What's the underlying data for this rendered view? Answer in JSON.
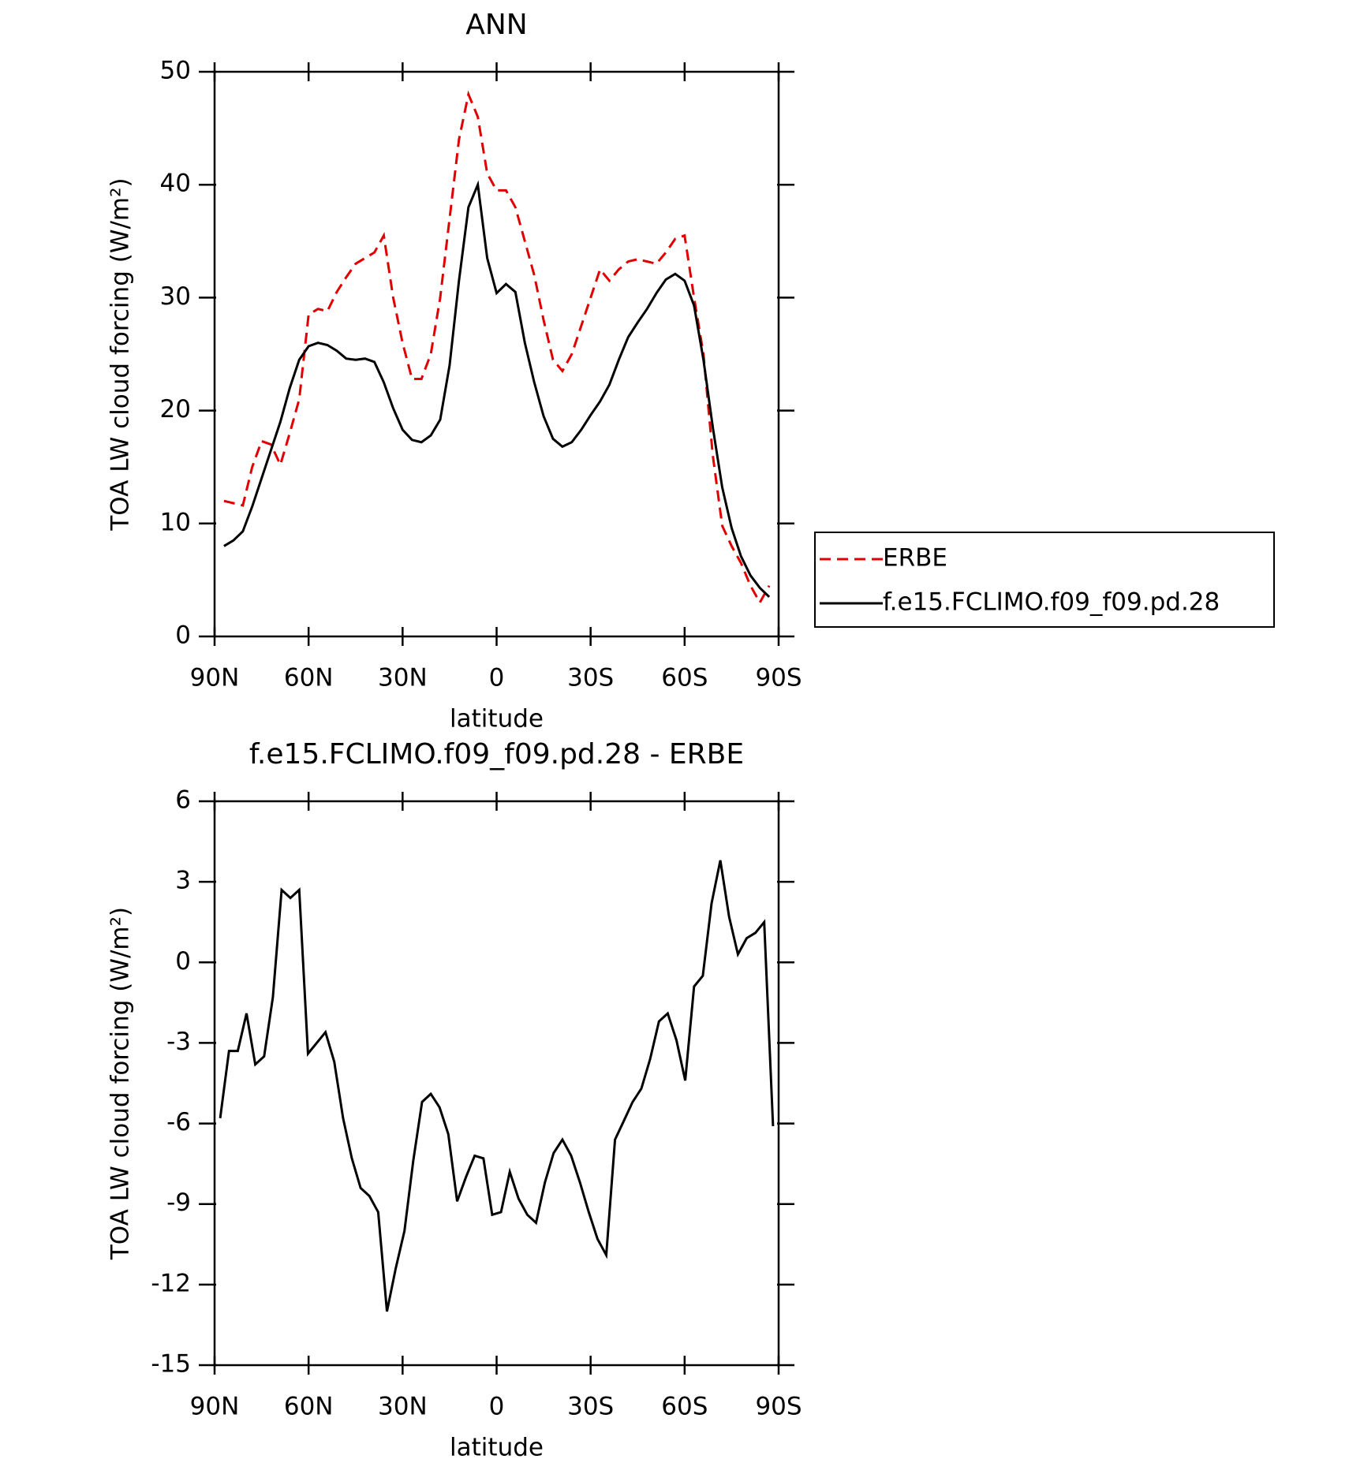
{
  "chart_data": [
    {
      "type": "line",
      "title": "ANN",
      "xlabel": "latitude",
      "ylabel": "TOA LW cloud forcing (W/m²)",
      "x": [
        87,
        84,
        81,
        78,
        75,
        72,
        69,
        66,
        63,
        60,
        57,
        54,
        51,
        48,
        45,
        42,
        39,
        36,
        33,
        30,
        27,
        24,
        21,
        18,
        15,
        12,
        9,
        6,
        3,
        0,
        -3,
        -6,
        -9,
        -12,
        -15,
        -18,
        -21,
        -24,
        -27,
        -30,
        -33,
        -36,
        -39,
        -42,
        -45,
        -48,
        -51,
        -54,
        -57,
        -60,
        -63,
        -66,
        -69,
        -72,
        -75,
        -78,
        -81,
        -84,
        -87
      ],
      "series": [
        {
          "name": "ERBE",
          "color": "#e00000",
          "style": "dashed",
          "values": [
            12,
            11.8,
            11.6,
            15,
            17.3,
            17,
            15.2,
            18,
            21,
            28.5,
            29,
            28.8,
            30.5,
            31.8,
            33,
            33.5,
            34,
            35.5,
            30,
            26,
            22.8,
            22.8,
            25,
            30,
            37,
            44,
            48,
            46,
            41,
            39.5,
            39.5,
            38,
            35,
            32,
            28,
            24.5,
            23.5,
            25,
            27.5,
            30,
            32.5,
            31.5,
            32.5,
            33.2,
            33.4,
            33.2,
            33,
            34,
            35.2,
            35.5,
            30,
            25,
            16,
            9.8,
            8,
            6.5,
            4.5,
            3,
            4.5
          ]
        },
        {
          "name": "f.e15.FCLIMO.f09_f09.pd.28",
          "color": "#000000",
          "style": "solid",
          "values": [
            8.0,
            8.5,
            9.3,
            11.5,
            14,
            16.5,
            19,
            22,
            24.5,
            25.7,
            26,
            25.8,
            25.3,
            24.6,
            24.5,
            24.6,
            24.3,
            22.5,
            20.2,
            18.3,
            17.4,
            17.2,
            17.8,
            19.2,
            24,
            31.5,
            38,
            40,
            33.5,
            30.4,
            31.2,
            30.5,
            26,
            22.5,
            19.5,
            17.5,
            16.8,
            17.2,
            18.3,
            19.6,
            20.8,
            22.3,
            24.5,
            26.5,
            27.8,
            29,
            30.4,
            31.6,
            32.1,
            31.5,
            29.3,
            24.5,
            18.5,
            13.2,
            9.6,
            7.1,
            5.4,
            4.3,
            3.5
          ]
        }
      ],
      "xlim": [
        90,
        -90
      ],
      "xticks": [
        {
          "value": 90,
          "label": "90N"
        },
        {
          "value": 60,
          "label": "60N"
        },
        {
          "value": 30,
          "label": "30N"
        },
        0,
        {
          "value": -30,
          "label": "30S"
        },
        {
          "value": -60,
          "label": "60S"
        },
        {
          "value": -90,
          "label": "90S"
        }
      ],
      "ylim": [
        0,
        50
      ],
      "yticks": [
        0,
        10,
        20,
        30,
        40,
        50
      ],
      "legend": "outside-right"
    },
    {
      "type": "line",
      "title": "f.e15.FCLIMO.f09_f09.pd.28 - ERBE",
      "xlabel": "latitude",
      "ylabel": "TOA LW cloud forcing (W/m²)",
      "x": [
        88.2,
        85.4,
        82.6,
        79.8,
        77,
        74.2,
        71.4,
        68.6,
        65.8,
        63,
        60.2,
        57.4,
        54.6,
        51.8,
        49,
        46.2,
        43.4,
        40.6,
        37.8,
        35,
        32.2,
        29.4,
        26.6,
        23.8,
        21,
        18.2,
        15.4,
        12.6,
        9.8,
        7,
        4.2,
        1.4,
        -1.4,
        -4.2,
        -7,
        -9.8,
        -12.6,
        -15.4,
        -18.2,
        -21,
        -23.8,
        -26.6,
        -29.4,
        -32.2,
        -35,
        -37.8,
        -40.6,
        -43.4,
        -46.2,
        -49,
        -51.8,
        -54.6,
        -57.4,
        -60.2,
        -63,
        -65.8,
        -68.6,
        -71.4,
        -74.2,
        -77,
        -79.8,
        -82.6,
        -85.4,
        -88.2
      ],
      "series": [
        {
          "color": "#000000",
          "style": "solid",
          "values": [
            -5.8,
            -3.3,
            -3.3,
            -1.9,
            -3.8,
            -3.5,
            -1.3,
            2.7,
            2.4,
            2.7,
            -3.4,
            -3,
            -2.6,
            -3.7,
            -5.8,
            -7.3,
            -8.4,
            -8.7,
            -9.3,
            -13,
            -11.4,
            -10,
            -7.4,
            -5.2,
            -4.9,
            -5.4,
            -6.4,
            -8.9,
            -8,
            -7.2,
            -7.3,
            -9.4,
            -9.3,
            -7.8,
            -8.8,
            -9.4,
            -9.7,
            -8.2,
            -7.1,
            -6.6,
            -7.2,
            -8.2,
            -9.3,
            -10.3,
            -10.9,
            -6.6,
            -5.9,
            -5.2,
            -4.7,
            -3.6,
            -2.2,
            -1.9,
            -2.9,
            -4.4,
            -0.9,
            -0.5,
            2.2,
            3.8,
            1.7,
            0.3,
            0.9,
            1.1,
            1.5,
            -6.1
          ]
        }
      ],
      "xlim": [
        90,
        -90
      ],
      "xticks": [
        {
          "value": 90,
          "label": "90N"
        },
        {
          "value": 60,
          "label": "60N"
        },
        {
          "value": 30,
          "label": "30N"
        },
        0,
        {
          "value": -30,
          "label": "30S"
        },
        {
          "value": -60,
          "label": "60S"
        },
        {
          "value": -90,
          "label": "90S"
        }
      ],
      "ylim": [
        -15,
        6
      ],
      "yticks": [
        -15,
        -12,
        -9,
        -6,
        -3,
        0,
        3,
        6
      ]
    }
  ]
}
